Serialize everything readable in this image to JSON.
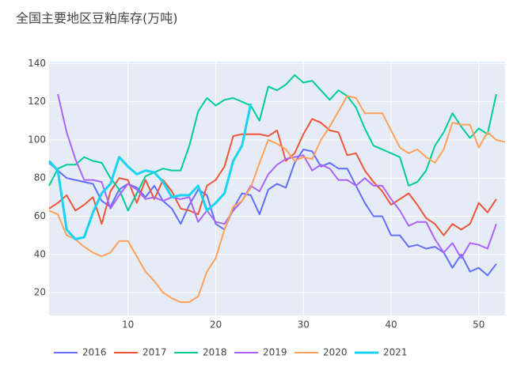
{
  "chart_data": {
    "type": "line",
    "title": "全国主要地区豆粕库存(万吨)",
    "x": [
      1,
      2,
      3,
      4,
      5,
      6,
      7,
      8,
      9,
      10,
      11,
      12,
      13,
      14,
      15,
      16,
      17,
      18,
      19,
      20,
      21,
      22,
      23,
      24,
      25,
      26,
      27,
      28,
      29,
      30,
      31,
      32,
      33,
      34,
      35,
      36,
      37,
      38,
      39,
      40,
      41,
      42,
      43,
      44,
      45,
      46,
      47,
      48,
      49,
      50,
      51,
      52,
      53
    ],
    "xlim": [
      1,
      53
    ],
    "xticks": [
      10,
      20,
      30,
      40,
      50
    ],
    "ylim": [
      8,
      141
    ],
    "yticks": [
      20,
      40,
      60,
      80,
      100,
      120,
      140
    ],
    "grid": true,
    "legend": "bottom",
    "series": [
      {
        "name": "2016",
        "color": "#636efa",
        "values": [
          88,
          84,
          80,
          79,
          78,
          77,
          68,
          65,
          74,
          77,
          75,
          70,
          76,
          68,
          64,
          56,
          66,
          74,
          71,
          56,
          53,
          64,
          72,
          71,
          61,
          74,
          77,
          75,
          88,
          95,
          94,
          86,
          88,
          85,
          85,
          76,
          67,
          60,
          60,
          50,
          50,
          44,
          45,
          43,
          44,
          41,
          33,
          40,
          31,
          33,
          29,
          35,
          null
        ]
      },
      {
        "name": "2017",
        "color": "#ef553b",
        "values": [
          64,
          67,
          71,
          63,
          66,
          70,
          56,
          73,
          80,
          79,
          67,
          79,
          69,
          79,
          73,
          64,
          63,
          61,
          76,
          79,
          86,
          102,
          103,
          103,
          103,
          102,
          105,
          89,
          93,
          103,
          111,
          109,
          105,
          104,
          92,
          93,
          84,
          78,
          73,
          66,
          69,
          72,
          66,
          59,
          56,
          50,
          56,
          53,
          56,
          67,
          62,
          69,
          null
        ]
      },
      {
        "name": "2018",
        "color": "#00cc96",
        "values": [
          76,
          85,
          87,
          87,
          91,
          89,
          88,
          80,
          74,
          63,
          72,
          81,
          83,
          85,
          84,
          84,
          97,
          115,
          122,
          118,
          121,
          122,
          120,
          118,
          110,
          128,
          126,
          129,
          134,
          130,
          131,
          126,
          121,
          126,
          123,
          117,
          106,
          97,
          95,
          93,
          91,
          76,
          78,
          84,
          97,
          104,
          114,
          107,
          101,
          106,
          103,
          124,
          null
        ]
      },
      {
        "name": "2019",
        "color": "#ab63fa",
        "values": [
          null,
          124,
          104,
          90,
          79,
          79,
          78,
          64,
          71,
          77,
          74,
          69,
          70,
          68,
          70,
          69,
          70,
          57,
          63,
          57,
          56,
          63,
          68,
          76,
          73,
          82,
          87,
          90,
          91,
          92,
          84,
          87,
          85,
          79,
          79,
          76,
          80,
          76,
          76,
          69,
          63,
          55,
          57,
          57,
          48,
          41,
          46,
          38,
          46,
          45,
          43,
          56,
          null
        ]
      },
      {
        "name": "2020",
        "color": "#ffa15a",
        "values": [
          63,
          61,
          50,
          48,
          44,
          41,
          39,
          41,
          47,
          47,
          39,
          31,
          26,
          20,
          17,
          15,
          15,
          18,
          31,
          38,
          53,
          65,
          68,
          75,
          88,
          100,
          98,
          95,
          89,
          91,
          90,
          100,
          107,
          115,
          123,
          122,
          114,
          114,
          114,
          105,
          96,
          93,
          95,
          91,
          88,
          95,
          109,
          108,
          108,
          96,
          104,
          100,
          99
        ]
      },
      {
        "name": "2021",
        "color": "#19d3f3",
        "width": 3,
        "values": [
          89,
          84,
          53,
          48,
          49,
          62,
          72,
          77,
          91,
          86,
          82,
          84,
          83,
          78,
          70,
          71,
          71,
          76,
          63,
          67,
          72,
          89,
          97,
          119,
          null,
          null,
          null,
          null,
          null,
          null,
          null,
          null,
          null,
          null,
          null,
          null,
          null,
          null,
          null,
          null,
          null,
          null,
          null,
          null,
          null,
          null,
          null,
          null,
          null,
          null,
          null,
          null,
          null
        ]
      }
    ]
  }
}
